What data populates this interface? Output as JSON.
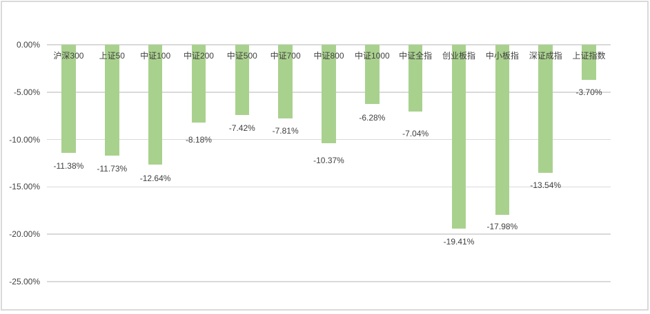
{
  "chart": {
    "background_color": "#FFFFFF",
    "frame_border_color": "#D9D9D9",
    "gridline_color": "#D9D9D9",
    "bar_color": "#A9D18E",
    "text_color": "#3F3F3F"
  },
  "chart_data": {
    "type": "bar",
    "orientation": "vertical",
    "title": "",
    "xlabel": "",
    "ylabel": "",
    "legend": false,
    "grid": true,
    "ylim": [
      -25,
      0
    ],
    "yticks": [
      {
        "label": "0.00%",
        "value": 0
      },
      {
        "label": "-5.00%",
        "value": -5
      },
      {
        "label": "-10.00%",
        "value": -10
      },
      {
        "label": "-15.00%",
        "value": -15
      },
      {
        "label": "-20.00%",
        "value": -20
      },
      {
        "label": "-25.00%",
        "value": -25
      }
    ],
    "categories": [
      "沪深300",
      "上证50",
      "中证100",
      "中证200",
      "中证500",
      "中证700",
      "中证800",
      "中证1000",
      "中证全指",
      "创业板指",
      "中小板指",
      "深证成指",
      "上证指数"
    ],
    "values": [
      -11.38,
      -11.73,
      -12.64,
      -8.18,
      -7.42,
      -7.81,
      -10.37,
      -6.28,
      -7.04,
      -19.41,
      -17.98,
      -13.54,
      -3.7
    ],
    "data_labels": [
      "-11.38%",
      "-11.73%",
      "-12.64%",
      "-8.18%",
      "-7.42%",
      "-7.81%",
      "-10.37%",
      "-6.28%",
      "-7.04%",
      "-19.41%",
      "-17.98%",
      "-13.54%",
      "-3.70%"
    ],
    "series_color": "#A9D18E"
  }
}
